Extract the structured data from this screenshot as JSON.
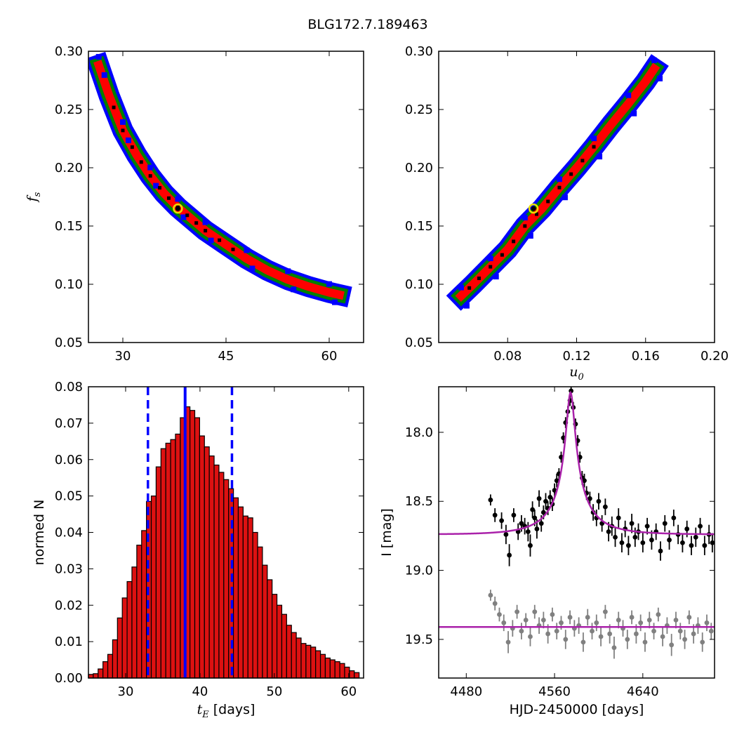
{
  "figure_title": "BLG172.7.189463",
  "colors": {
    "sigma1": "#ff0000",
    "sigma2": "#007f00",
    "sigma3": "#0000ff",
    "core": "#000000",
    "best_fit_marker": "#e8e000",
    "model": "#aa22aa",
    "data_primary": "#000000",
    "data_secondary": "#808080",
    "hist_bar": "#dd1111",
    "median_line": "#0000ff"
  },
  "chart_data": [
    {
      "id": "fs-vs-tE",
      "type": "heatmap",
      "title": "",
      "xlabel": "",
      "ylabel": "f_s",
      "ylabel_main": "f",
      "ylabel_sub": "s",
      "xlim": [
        25,
        65
      ],
      "ylim": [
        0.05,
        0.3
      ],
      "xticks": [
        30,
        45,
        60
      ],
      "xtick_labels": [
        "30",
        "45",
        "60"
      ],
      "yticks": [
        0.05,
        0.1,
        0.15,
        0.2,
        0.25,
        0.3
      ],
      "ytick_labels": [
        "0.05",
        "0.10",
        "0.15",
        "0.20",
        "0.25",
        "0.30"
      ],
      "levels": [
        "3-sigma",
        "2-sigma",
        "1-sigma",
        "peak"
      ],
      "ridge": {
        "x": [
          26.5,
          28,
          30,
          32,
          34,
          36,
          38,
          40,
          42,
          45,
          48,
          51,
          54,
          57,
          60,
          61.5
        ],
        "y": [
          0.288,
          0.262,
          0.232,
          0.211,
          0.193,
          0.178,
          0.166,
          0.156,
          0.146,
          0.134,
          0.122,
          0.112,
          0.104,
          0.098,
          0.093,
          0.091
        ]
      },
      "best_fit": {
        "x": 38.0,
        "y": 0.165
      }
    },
    {
      "id": "fs-vs-u0",
      "type": "heatmap",
      "title": "",
      "xlabel": "u_0",
      "xlabel_main": "u",
      "xlabel_sub": "0",
      "ylabel": "",
      "xlim": [
        0.04,
        0.2
      ],
      "ylim": [
        0.05,
        0.3
      ],
      "xticks": [
        0.08,
        0.12,
        0.16,
        0.2
      ],
      "xtick_labels": [
        "0.08",
        "0.12",
        "0.16",
        "0.20"
      ],
      "yticks": [
        0.05,
        0.1,
        0.15,
        0.2,
        0.25,
        0.3
      ],
      "ytick_labels": [
        "0.05",
        "0.10",
        "0.15",
        "0.20",
        "0.25",
        "0.30"
      ],
      "ridge": {
        "x": [
          0.053,
          0.06,
          0.07,
          0.08,
          0.09,
          0.1,
          0.11,
          0.12,
          0.13,
          0.14,
          0.15,
          0.16,
          0.165
        ],
        "y": [
          0.09,
          0.1,
          0.115,
          0.13,
          0.15,
          0.165,
          0.183,
          0.2,
          0.218,
          0.237,
          0.255,
          0.274,
          0.285
        ]
      },
      "best_fit": {
        "x": 0.095,
        "y": 0.165
      }
    },
    {
      "id": "tE-histogram",
      "type": "bar",
      "title": "",
      "xlabel_main": "t",
      "xlabel_sub": "E",
      "xlabel_suffix": "  [days]",
      "ylabel": "normed N",
      "xlim": [
        25,
        62
      ],
      "ylim": [
        0,
        0.08
      ],
      "xticks": [
        30,
        40,
        50,
        60
      ],
      "xtick_labels": [
        "30",
        "40",
        "50",
        "60"
      ],
      "yticks": [
        0.0,
        0.01,
        0.02,
        0.03,
        0.04,
        0.05,
        0.06,
        0.07,
        0.08
      ],
      "ytick_labels": [
        "0.00",
        "0.01",
        "0.02",
        "0.03",
        "0.04",
        "0.05",
        "0.06",
        "0.07",
        "0.08"
      ],
      "bin_start": 25.0,
      "bin_width": 0.65,
      "values": [
        0.001,
        0.0012,
        0.0025,
        0.0045,
        0.0065,
        0.0105,
        0.0165,
        0.022,
        0.0265,
        0.0305,
        0.0365,
        0.0405,
        0.0485,
        0.05,
        0.058,
        0.063,
        0.0645,
        0.0655,
        0.067,
        0.0715,
        0.0745,
        0.0735,
        0.0715,
        0.0665,
        0.0635,
        0.061,
        0.0585,
        0.0565,
        0.0545,
        0.052,
        0.0495,
        0.047,
        0.0445,
        0.044,
        0.04,
        0.036,
        0.031,
        0.027,
        0.023,
        0.02,
        0.0175,
        0.0145,
        0.0125,
        0.011,
        0.0095,
        0.009,
        0.0085,
        0.0075,
        0.0065,
        0.0055,
        0.005,
        0.0045,
        0.004,
        0.003,
        0.002,
        0.0015,
        0.0012,
        0.0008
      ],
      "median": 38.0,
      "lower": 33.0,
      "upper": 44.3
    },
    {
      "id": "light-curve",
      "type": "scatter",
      "title": "",
      "xlabel": "HJD-2450000 [days]",
      "ylabel": "I [mag]",
      "xlim": [
        4455,
        4705
      ],
      "ylim": [
        19.78,
        17.67
      ],
      "y_inverted": true,
      "xticks": [
        4480,
        4560,
        4640
      ],
      "xtick_labels": [
        "4480",
        "4560",
        "4640"
      ],
      "yticks": [
        18.0,
        18.5,
        19.0,
        19.5
      ],
      "ytick_labels": [
        "18.0",
        "18.5",
        "19.0",
        "19.5"
      ],
      "model": {
        "t0": 4574.5,
        "tE": 38.0,
        "u0": 0.095,
        "baseline_mag": 18.74,
        "fs": 0.165
      },
      "secondary_model_mag": 19.41,
      "primary_points": [
        [
          4502,
          18.49,
          0.04
        ],
        [
          4506,
          18.6,
          0.05
        ],
        [
          4512,
          18.64,
          0.06
        ],
        [
          4516,
          18.74,
          0.07
        ],
        [
          4519,
          18.89,
          0.08
        ],
        [
          4523,
          18.6,
          0.05
        ],
        [
          4527,
          18.72,
          0.06
        ],
        [
          4530,
          18.66,
          0.06
        ],
        [
          4533,
          18.68,
          0.06
        ],
        [
          4536,
          18.72,
          0.07
        ],
        [
          4538,
          18.82,
          0.08
        ],
        [
          4540,
          18.56,
          0.06
        ],
        [
          4542,
          18.62,
          0.06
        ],
        [
          4544,
          18.7,
          0.07
        ],
        [
          4546,
          18.48,
          0.06
        ],
        [
          4548,
          18.66,
          0.06
        ],
        [
          4550,
          18.58,
          0.05
        ],
        [
          4552,
          18.5,
          0.06
        ],
        [
          4554,
          18.55,
          0.05
        ],
        [
          4556,
          18.47,
          0.05
        ],
        [
          4558,
          18.52,
          0.05
        ],
        [
          4560,
          18.42,
          0.05
        ],
        [
          4562,
          18.35,
          0.05
        ],
        [
          4564,
          18.3,
          0.04
        ],
        [
          4566,
          18.18,
          0.04
        ],
        [
          4568,
          18.04,
          0.04
        ],
        [
          4570,
          17.93,
          0.04
        ],
        [
          4572,
          17.85,
          0.04
        ],
        [
          4574,
          17.77,
          0.04
        ],
        [
          4575,
          17.7,
          0.04
        ],
        [
          4577,
          17.82,
          0.04
        ],
        [
          4579,
          17.94,
          0.04
        ],
        [
          4581,
          18.06,
          0.04
        ],
        [
          4583,
          18.18,
          0.04
        ],
        [
          4585,
          18.33,
          0.05
        ],
        [
          4587,
          18.35,
          0.05
        ],
        [
          4589,
          18.44,
          0.05
        ],
        [
          4592,
          18.48,
          0.05
        ],
        [
          4595,
          18.58,
          0.06
        ],
        [
          4598,
          18.62,
          0.06
        ],
        [
          4600,
          18.5,
          0.06
        ],
        [
          4603,
          18.66,
          0.06
        ],
        [
          4606,
          18.54,
          0.06
        ],
        [
          4609,
          18.72,
          0.07
        ],
        [
          4612,
          18.68,
          0.07
        ],
        [
          4615,
          18.76,
          0.07
        ],
        [
          4618,
          18.62,
          0.07
        ],
        [
          4621,
          18.8,
          0.07
        ],
        [
          4624,
          18.7,
          0.06
        ],
        [
          4627,
          18.82,
          0.07
        ],
        [
          4630,
          18.66,
          0.07
        ],
        [
          4633,
          18.76,
          0.07
        ],
        [
          4636,
          18.72,
          0.06
        ],
        [
          4640,
          18.8,
          0.07
        ],
        [
          4644,
          18.68,
          0.06
        ],
        [
          4648,
          18.78,
          0.07
        ],
        [
          4652,
          18.72,
          0.06
        ],
        [
          4656,
          18.86,
          0.07
        ],
        [
          4660,
          18.66,
          0.06
        ],
        [
          4664,
          18.78,
          0.07
        ],
        [
          4668,
          18.62,
          0.06
        ],
        [
          4672,
          18.74,
          0.07
        ],
        [
          4676,
          18.8,
          0.07
        ],
        [
          4680,
          18.7,
          0.06
        ],
        [
          4684,
          18.82,
          0.07
        ],
        [
          4688,
          18.76,
          0.07
        ],
        [
          4692,
          18.68,
          0.06
        ],
        [
          4696,
          18.82,
          0.07
        ],
        [
          4700,
          18.74,
          0.07
        ],
        [
          4703,
          18.8,
          0.07
        ]
      ],
      "secondary_points": [
        [
          4502,
          19.18,
          0.04
        ],
        [
          4506,
          19.24,
          0.05
        ],
        [
          4510,
          19.32,
          0.05
        ],
        [
          4514,
          19.38,
          0.06
        ],
        [
          4518,
          19.52,
          0.08
        ],
        [
          4522,
          19.42,
          0.06
        ],
        [
          4526,
          19.3,
          0.05
        ],
        [
          4530,
          19.44,
          0.06
        ],
        [
          4534,
          19.36,
          0.05
        ],
        [
          4538,
          19.48,
          0.07
        ],
        [
          4542,
          19.3,
          0.05
        ],
        [
          4546,
          19.4,
          0.06
        ],
        [
          4550,
          19.36,
          0.06
        ],
        [
          4554,
          19.46,
          0.07
        ],
        [
          4558,
          19.32,
          0.05
        ],
        [
          4562,
          19.44,
          0.06
        ],
        [
          4566,
          19.38,
          0.05
        ],
        [
          4570,
          19.5,
          0.07
        ],
        [
          4574,
          19.34,
          0.05
        ],
        [
          4578,
          19.42,
          0.06
        ],
        [
          4582,
          19.4,
          0.06
        ],
        [
          4586,
          19.52,
          0.07
        ],
        [
          4590,
          19.34,
          0.06
        ],
        [
          4594,
          19.44,
          0.06
        ],
        [
          4598,
          19.38,
          0.06
        ],
        [
          4602,
          19.48,
          0.07
        ],
        [
          4606,
          19.3,
          0.05
        ],
        [
          4610,
          19.46,
          0.07
        ],
        [
          4614,
          19.56,
          0.08
        ],
        [
          4618,
          19.36,
          0.06
        ],
        [
          4622,
          19.42,
          0.06
        ],
        [
          4626,
          19.5,
          0.07
        ],
        [
          4630,
          19.34,
          0.05
        ],
        [
          4634,
          19.46,
          0.07
        ],
        [
          4638,
          19.38,
          0.06
        ],
        [
          4642,
          19.52,
          0.07
        ],
        [
          4646,
          19.36,
          0.06
        ],
        [
          4650,
          19.44,
          0.06
        ],
        [
          4654,
          19.32,
          0.05
        ],
        [
          4658,
          19.48,
          0.07
        ],
        [
          4662,
          19.4,
          0.06
        ],
        [
          4666,
          19.54,
          0.08
        ],
        [
          4670,
          19.36,
          0.06
        ],
        [
          4674,
          19.44,
          0.06
        ],
        [
          4678,
          19.5,
          0.07
        ],
        [
          4682,
          19.34,
          0.05
        ],
        [
          4686,
          19.46,
          0.07
        ],
        [
          4690,
          19.4,
          0.06
        ],
        [
          4694,
          19.52,
          0.07
        ],
        [
          4698,
          19.38,
          0.06
        ],
        [
          4702,
          19.44,
          0.06
        ]
      ]
    }
  ]
}
